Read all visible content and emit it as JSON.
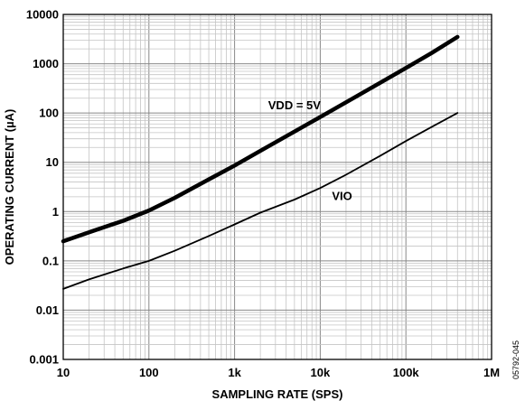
{
  "chart_data": {
    "type": "line",
    "xlabel": "SAMPLING RATE (SPS)",
    "ylabel": "OPERATING CURRENT (µA)",
    "x_scale": "log",
    "y_scale": "log",
    "xlim": [
      10,
      1000000
    ],
    "ylim": [
      0.001,
      10000
    ],
    "grid": true,
    "x_ticks": [
      {
        "value": 10,
        "label": "10"
      },
      {
        "value": 100,
        "label": "100"
      },
      {
        "value": 1000,
        "label": "1k"
      },
      {
        "value": 10000,
        "label": "10k"
      },
      {
        "value": 100000,
        "label": "100k"
      },
      {
        "value": 1000000,
        "label": "1M"
      }
    ],
    "y_ticks": [
      {
        "value": 0.001,
        "label": "0.001"
      },
      {
        "value": 0.01,
        "label": "0.01"
      },
      {
        "value": 0.1,
        "label": "0.1"
      },
      {
        "value": 1,
        "label": "1"
      },
      {
        "value": 10,
        "label": "10"
      },
      {
        "value": 100,
        "label": "100"
      },
      {
        "value": 1000,
        "label": "1000"
      },
      {
        "value": 10000,
        "label": "10000"
      }
    ],
    "series": [
      {
        "name": "VDD = 5V",
        "color": "#000000",
        "weight": "heavy",
        "x": [
          10,
          20,
          50,
          100,
          200,
          500,
          1000,
          2000,
          5000,
          10000,
          20000,
          50000,
          100000,
          200000,
          400000
        ],
        "y": [
          0.25,
          0.38,
          0.65,
          1.05,
          1.9,
          4.5,
          8.6,
          17,
          42,
          83,
          165,
          410,
          820,
          1650,
          3500
        ]
      },
      {
        "name": "VIO",
        "color": "#000000",
        "weight": "light",
        "x": [
          10,
          20,
          50,
          100,
          200,
          500,
          1000,
          2000,
          5000,
          10000,
          20000,
          50000,
          100000,
          200000,
          400000
        ],
        "y": [
          0.027,
          0.042,
          0.07,
          0.1,
          0.16,
          0.32,
          0.55,
          0.95,
          1.75,
          3.0,
          5.6,
          13.5,
          27,
          52,
          100
        ]
      }
    ],
    "annotations": [
      {
        "text": "VDD = 5V",
        "x": 5000,
        "y": 120
      },
      {
        "text": "VIO",
        "x": 18000,
        "y": 1.7
      }
    ]
  },
  "figure_id": "05792-045"
}
